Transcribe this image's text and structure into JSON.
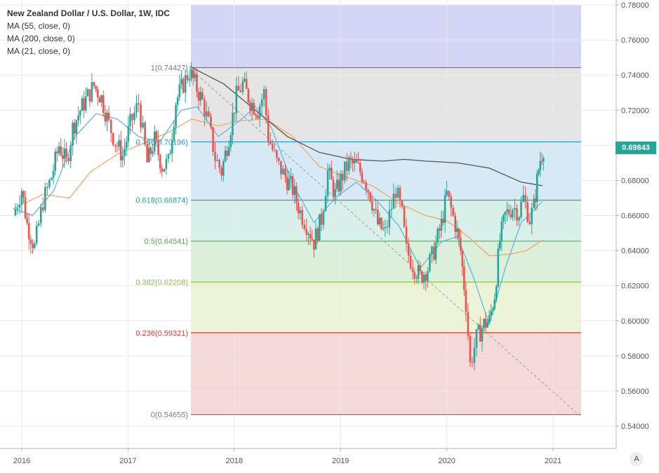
{
  "chart_data": {
    "type": "candlestick",
    "title": "New Zealand Dollar / U.S. Dollar, 1W, IDC",
    "indicators": [
      "MA (55, close, 0)",
      "MA (200, close, 0)",
      "MA (21, close, 0)"
    ],
    "last_price": "0.69843",
    "x_ticks": [
      "2016",
      "2017",
      "2018",
      "2019",
      "2020",
      "2021"
    ],
    "y_ticks": [
      "0.54000",
      "0.56000",
      "0.58000",
      "0.60000",
      "0.62000",
      "0.64000",
      "0.66000",
      "0.68000",
      "0.70000",
      "0.72000",
      "0.74000",
      "0.76000",
      "0.78000"
    ],
    "ylim": [
      0.54,
      0.78
    ],
    "fibonacci": [
      {
        "label": "1(0.74427)",
        "value": 0.74427,
        "color": "#787b86"
      },
      {
        "label": "0.786(0.70196)",
        "value": 0.70196,
        "color": "#2196f3"
      },
      {
        "label": "0.618(0.66874)",
        "value": 0.66874,
        "color": "#26a69a"
      },
      {
        "label": "0.5(0.64541)",
        "value": 0.64541,
        "color": "#4caf50"
      },
      {
        "label": "0.382(0.62208)",
        "value": 0.62208,
        "color": "#8bc34a"
      },
      {
        "label": "0.236(0.59321)",
        "value": 0.59321,
        "color": "#e53935"
      },
      {
        "label": "0(0.54655)",
        "value": 0.54655,
        "color": "#787b86"
      }
    ],
    "fib_zone_colors": [
      "#d3d4f4",
      "#e4e4e4",
      "#d4e8f4",
      "#d7efe9",
      "#d9eed9",
      "#eaf3d4",
      "#f4d7d7"
    ],
    "ohlc_close_path": [
      [
        2015.92,
        0.66
      ],
      [
        2016.0,
        0.675
      ],
      [
        2016.05,
        0.655
      ],
      [
        2016.12,
        0.642
      ],
      [
        2016.2,
        0.668
      ],
      [
        2016.28,
        0.682
      ],
      [
        2016.35,
        0.7
      ],
      [
        2016.42,
        0.69
      ],
      [
        2016.48,
        0.71
      ],
      [
        2016.55,
        0.72
      ],
      [
        2016.62,
        0.728
      ],
      [
        2016.68,
        0.734
      ],
      [
        2016.75,
        0.727
      ],
      [
        2016.82,
        0.712
      ],
      [
        2016.88,
        0.702
      ],
      [
        2016.95,
        0.694
      ],
      [
        2017.02,
        0.712
      ],
      [
        2017.1,
        0.724
      ],
      [
        2017.18,
        0.69
      ],
      [
        2017.25,
        0.703
      ],
      [
        2017.32,
        0.688
      ],
      [
        2017.38,
        0.69
      ],
      [
        2017.45,
        0.725
      ],
      [
        2017.52,
        0.735
      ],
      [
        2017.58,
        0.742
      ],
      [
        2017.63,
        0.735
      ],
      [
        2017.7,
        0.725
      ],
      [
        2017.76,
        0.712
      ],
      [
        2017.82,
        0.693
      ],
      [
        2017.88,
        0.685
      ],
      [
        2017.95,
        0.705
      ],
      [
        2018.02,
        0.728
      ],
      [
        2018.08,
        0.735
      ],
      [
        2018.15,
        0.725
      ],
      [
        2018.22,
        0.72
      ],
      [
        2018.28,
        0.73
      ],
      [
        2018.32,
        0.705
      ],
      [
        2018.4,
        0.69
      ],
      [
        2018.48,
        0.682
      ],
      [
        2018.55,
        0.675
      ],
      [
        2018.62,
        0.662
      ],
      [
        2018.68,
        0.655
      ],
      [
        2018.75,
        0.645
      ],
      [
        2018.82,
        0.658
      ],
      [
        2018.88,
        0.685
      ],
      [
        2018.95,
        0.672
      ],
      [
        2019.02,
        0.683
      ],
      [
        2019.08,
        0.69
      ],
      [
        2019.15,
        0.688
      ],
      [
        2019.22,
        0.682
      ],
      [
        2019.28,
        0.672
      ],
      [
        2019.35,
        0.655
      ],
      [
        2019.42,
        0.65
      ],
      [
        2019.48,
        0.665
      ],
      [
        2019.52,
        0.675
      ],
      [
        2019.58,
        0.66
      ],
      [
        2019.62,
        0.64
      ],
      [
        2019.68,
        0.632
      ],
      [
        2019.75,
        0.625
      ],
      [
        2019.82,
        0.63
      ],
      [
        2019.88,
        0.64
      ],
      [
        2019.95,
        0.655
      ],
      [
        2020.0,
        0.672
      ],
      [
        2020.08,
        0.655
      ],
      [
        2020.13,
        0.64
      ],
      [
        2020.18,
        0.61
      ],
      [
        2020.22,
        0.575
      ],
      [
        2020.28,
        0.59
      ],
      [
        2020.35,
        0.598
      ],
      [
        2020.4,
        0.6
      ],
      [
        2020.45,
        0.615
      ],
      [
        2020.5,
        0.646
      ],
      [
        2020.55,
        0.66
      ],
      [
        2020.62,
        0.665
      ],
      [
        2020.68,
        0.662
      ],
      [
        2020.72,
        0.67
      ],
      [
        2020.78,
        0.658
      ],
      [
        2020.82,
        0.665
      ],
      [
        2020.85,
        0.68
      ],
      [
        2020.88,
        0.692
      ],
      [
        2020.91,
        0.6984
      ]
    ],
    "ma_200": [
      [
        2017.58,
        0.745
      ],
      [
        2017.9,
        0.735
      ],
      [
        2018.2,
        0.72
      ],
      [
        2018.5,
        0.705
      ],
      [
        2018.8,
        0.696
      ],
      [
        2019.1,
        0.692
      ],
      [
        2019.4,
        0.691
      ],
      [
        2019.6,
        0.692
      ],
      [
        2019.8,
        0.691
      ],
      [
        2020.1,
        0.69
      ],
      [
        2020.4,
        0.687
      ],
      [
        2020.7,
        0.679
      ],
      [
        2020.9,
        0.677
      ]
    ],
    "ma_55": [
      [
        2015.92,
        0.664
      ],
      [
        2016.2,
        0.672
      ],
      [
        2016.45,
        0.67
      ],
      [
        2016.65,
        0.685
      ],
      [
        2016.9,
        0.695
      ],
      [
        2017.1,
        0.7
      ],
      [
        2017.4,
        0.708
      ],
      [
        2017.6,
        0.715
      ],
      [
        2017.85,
        0.711
      ],
      [
        2018.05,
        0.714
      ],
      [
        2018.3,
        0.715
      ],
      [
        2018.55,
        0.705
      ],
      [
        2018.8,
        0.688
      ],
      [
        2019.0,
        0.683
      ],
      [
        2019.3,
        0.677
      ],
      [
        2019.55,
        0.667
      ],
      [
        2019.8,
        0.66
      ],
      [
        2020.0,
        0.657
      ],
      [
        2020.2,
        0.648
      ],
      [
        2020.4,
        0.637
      ],
      [
        2020.6,
        0.638
      ],
      [
        2020.75,
        0.64
      ],
      [
        2020.9,
        0.646
      ]
    ],
    "ma_21": [
      [
        2015.92,
        0.664
      ],
      [
        2016.1,
        0.66
      ],
      [
        2016.3,
        0.674
      ],
      [
        2016.5,
        0.705
      ],
      [
        2016.7,
        0.718
      ],
      [
        2016.9,
        0.715
      ],
      [
        2017.1,
        0.705
      ],
      [
        2017.3,
        0.702
      ],
      [
        2017.5,
        0.72
      ],
      [
        2017.65,
        0.722
      ],
      [
        2017.85,
        0.705
      ],
      [
        2018.05,
        0.714
      ],
      [
        2018.2,
        0.722
      ],
      [
        2018.35,
        0.71
      ],
      [
        2018.55,
        0.678
      ],
      [
        2018.75,
        0.656
      ],
      [
        2018.95,
        0.67
      ],
      [
        2019.15,
        0.679
      ],
      [
        2019.35,
        0.668
      ],
      [
        2019.55,
        0.654
      ],
      [
        2019.75,
        0.63
      ],
      [
        2019.95,
        0.645
      ],
      [
        2020.1,
        0.648
      ],
      [
        2020.25,
        0.625
      ],
      [
        2020.4,
        0.598
      ],
      [
        2020.55,
        0.63
      ],
      [
        2020.7,
        0.656
      ],
      [
        2020.9,
        0.668
      ]
    ],
    "trendline": [
      [
        2017.58,
        0.744
      ],
      [
        2021.25,
        0.546
      ]
    ]
  },
  "ui": {
    "badge_label": "A"
  }
}
